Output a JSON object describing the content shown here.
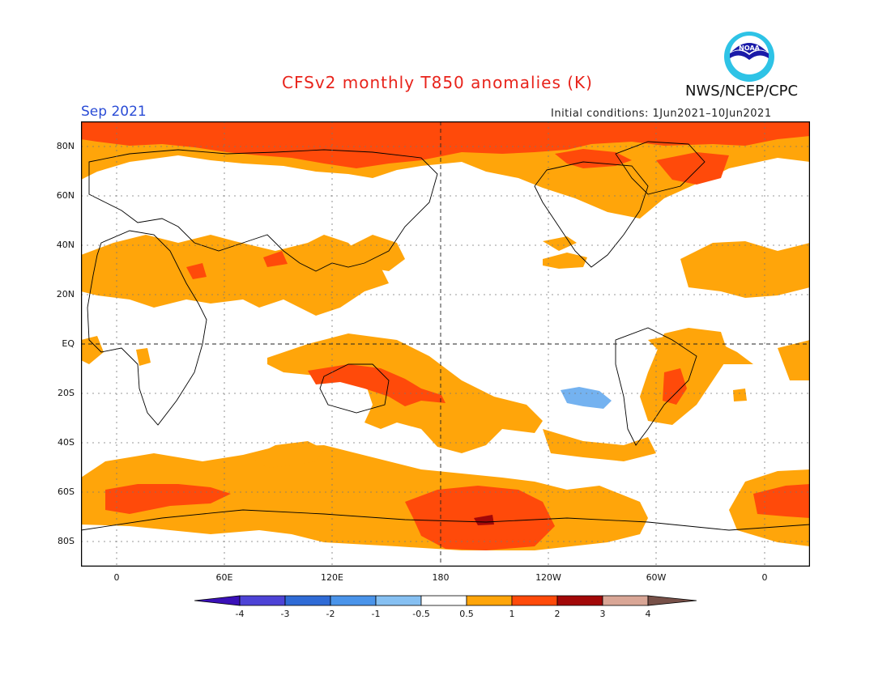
{
  "header": {
    "title": "CFSv2 monthly T850 anomalies (K)",
    "agency": "NWS/NCEP/CPC",
    "logo_text": "NOAA",
    "month": "Sep 2021",
    "initial_conditions": "Initial conditions: 1Jun2021–10Jun2021"
  },
  "map": {
    "latitude_labels": [
      "80N",
      "60N",
      "40N",
      "20N",
      "EQ",
      "20S",
      "40S",
      "60S",
      "80S"
    ],
    "longitude_labels": [
      "0",
      "60E",
      "120E",
      "180",
      "120W",
      "60W",
      "0"
    ]
  },
  "colorbar": {
    "labels": [
      "-4",
      "-3",
      "-2",
      "-1",
      "-0.5",
      "0.5",
      "1",
      "2",
      "3",
      "4"
    ],
    "colors": [
      "#3a10b8",
      "#4d43d6",
      "#2f6bd6",
      "#4a94ea",
      "#86c0f2",
      "#ffffff",
      "#ffa50a",
      "#ff4a0a",
      "#a20808",
      "#d9a696",
      "#775048"
    ]
  },
  "colors": {
    "title": "#e8231b",
    "month": "#2a4cd6",
    "anomaly_05_1": "#ffa50a",
    "anomaly_1_2": "#ff4a0a",
    "anomaly_2_3": "#a20808",
    "anomaly_neg": "#74b2f0"
  }
}
